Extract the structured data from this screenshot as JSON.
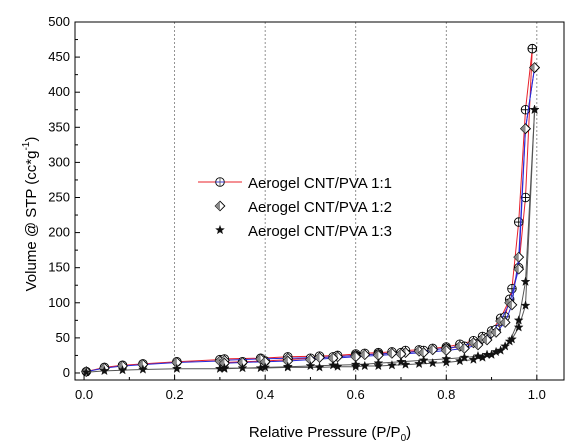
{
  "chart_data": {
    "type": "scatter",
    "title": "",
    "xlabel": "Relative Pressure (P/P0)",
    "xlabel_parts": {
      "main": "Relative Pressure (P/P",
      "sub": "0",
      "close": ")"
    },
    "ylabel": "Volume @ STP (cc*g-1)",
    "ylabel_parts": {
      "main": "Volume @ STP (cc*g",
      "sup": "-1",
      "close": ")"
    },
    "xlim": [
      -0.02,
      1.06
    ],
    "ylim": [
      -10,
      500
    ],
    "xticks": [
      "0.0",
      "0.2",
      "0.4",
      "0.6",
      "0.8",
      "1.0"
    ],
    "yticks": [
      "0",
      "50",
      "100",
      "150",
      "200",
      "250",
      "300",
      "350",
      "400",
      "450",
      "500"
    ],
    "grid": "vertical dotted",
    "legend_position": "center-left",
    "series": [
      {
        "name": "Aerogel CNT/PVA 1:1",
        "color": "#e8202a",
        "marker": "circle-plus",
        "adsorption": {
          "x": [
            0.005,
            0.045,
            0.085,
            0.13,
            0.205,
            0.3,
            0.31,
            0.39,
            0.45,
            0.52,
            0.56,
            0.6,
            0.62,
            0.65,
            0.68,
            0.71,
            0.74,
            0.77,
            0.8,
            0.83,
            0.86,
            0.88,
            0.9,
            0.92,
            0.94,
            0.96,
            0.975,
            0.99
          ],
          "y": [
            2,
            8,
            11,
            13,
            16,
            19,
            20,
            21,
            23,
            24,
            25,
            27,
            28,
            29,
            30,
            32,
            33,
            35,
            37,
            41,
            46,
            52,
            60,
            78,
            105,
            150,
            250,
            462
          ]
        },
        "desorption": {
          "x": [
            0.99,
            0.975,
            0.96,
            0.945,
            0.93,
            0.91,
            0.89,
            0.87,
            0.84,
            0.8,
            0.75,
            0.7,
            0.65,
            0.6,
            0.55,
            0.5,
            0.45,
            0.4,
            0.35,
            0.31
          ],
          "y": [
            462,
            375,
            215,
            120,
            80,
            62,
            50,
            42,
            38,
            35,
            32,
            29,
            27,
            25,
            23,
            21,
            19,
            17,
            16,
            15
          ]
        }
      },
      {
        "name": "Aerogel CNT/PVA 1:2",
        "color": "#2a2ad8",
        "marker": "diamond",
        "adsorption": {
          "x": [
            0.005,
            0.045,
            0.085,
            0.13,
            0.205,
            0.3,
            0.31,
            0.39,
            0.45,
            0.52,
            0.56,
            0.6,
            0.62,
            0.65,
            0.68,
            0.71,
            0.74,
            0.77,
            0.8,
            0.83,
            0.86,
            0.88,
            0.9,
            0.92,
            0.94,
            0.96,
            0.975,
            0.995
          ],
          "y": [
            2,
            7,
            10,
            12,
            15,
            17,
            18,
            20,
            21,
            22,
            23,
            25,
            26,
            27,
            28,
            29,
            31,
            33,
            35,
            38,
            43,
            49,
            57,
            74,
            100,
            148,
            348,
            435
          ]
        },
        "desorption": {
          "x": [
            0.995,
            0.975,
            0.96,
            0.945,
            0.93,
            0.91,
            0.89,
            0.87,
            0.84,
            0.8,
            0.75,
            0.7,
            0.65,
            0.6,
            0.55,
            0.5,
            0.45,
            0.4,
            0.35,
            0.31
          ],
          "y": [
            435,
            348,
            165,
            97,
            72,
            58,
            47,
            40,
            35,
            32,
            29,
            27,
            25,
            23,
            21,
            19,
            17,
            16,
            15,
            14
          ]
        }
      },
      {
        "name": "Aerogel CNT/PVA 1:3",
        "color": "#555555",
        "marker": "star",
        "adsorption": {
          "x": [
            0.005,
            0.045,
            0.085,
            0.13,
            0.205,
            0.3,
            0.31,
            0.39,
            0.45,
            0.52,
            0.56,
            0.6,
            0.62,
            0.65,
            0.68,
            0.71,
            0.74,
            0.77,
            0.8,
            0.83,
            0.86,
            0.88,
            0.9,
            0.92,
            0.94,
            0.96,
            0.975,
            0.995
          ],
          "y": [
            1,
            3,
            4,
            5,
            6,
            6,
            7,
            7,
            8,
            8,
            9,
            9,
            10,
            10,
            11,
            12,
            13,
            14,
            15,
            17,
            19,
            22,
            26,
            32,
            45,
            75,
            130,
            375
          ]
        },
        "desorption": {
          "x": [
            0.995,
            0.975,
            0.96,
            0.945,
            0.93,
            0.91,
            0.89,
            0.87,
            0.84,
            0.8,
            0.75,
            0.7,
            0.65,
            0.6,
            0.55,
            0.5,
            0.45,
            0.4,
            0.35,
            0.31
          ],
          "y": [
            375,
            96,
            65,
            48,
            38,
            30,
            26,
            24,
            22,
            20,
            18,
            16,
            14,
            12,
            11,
            10,
            9,
            8,
            7,
            6
          ]
        }
      }
    ]
  }
}
